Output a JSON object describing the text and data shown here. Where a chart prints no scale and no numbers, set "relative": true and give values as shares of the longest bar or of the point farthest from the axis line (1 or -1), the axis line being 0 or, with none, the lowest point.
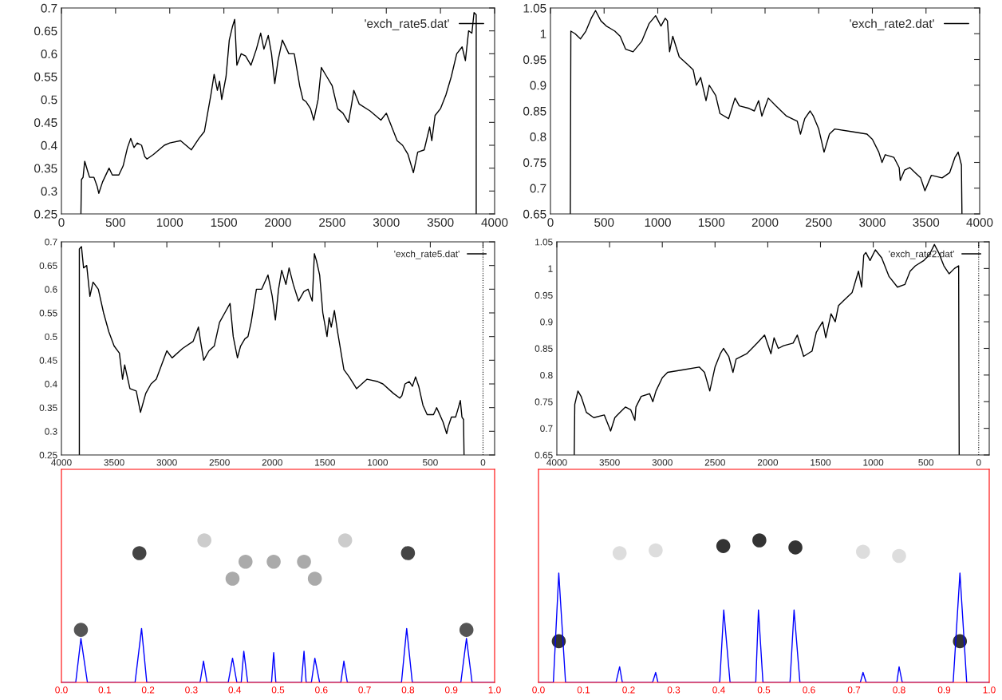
{
  "chart_data": [
    {
      "type": "line",
      "xlim": [
        0,
        4000
      ],
      "ylim": [
        0.25,
        0.7
      ],
      "xticks": [
        0,
        500,
        1000,
        1500,
        2000,
        2500,
        3000,
        3500,
        4000
      ],
      "yticks": [
        0.25,
        0.3,
        0.35,
        0.4,
        0.45,
        0.5,
        0.55,
        0.6,
        0.65,
        0.7
      ],
      "legend": "top right",
      "series": [
        {
          "name": "'exch_rate5.dat'",
          "color": "#000000",
          "x": [
            180,
            185,
            200,
            215,
            240,
            260,
            300,
            330,
            345,
            380,
            420,
            440,
            470,
            530,
            570,
            610,
            640,
            670,
            700,
            740,
            770,
            790,
            850,
            950,
            1000,
            1100,
            1200,
            1270,
            1320,
            1380,
            1410,
            1440,
            1460,
            1480,
            1520,
            1550,
            1580,
            1600,
            1620,
            1660,
            1700,
            1750,
            1800,
            1840,
            1870,
            1910,
            1940,
            1970,
            2000,
            2040,
            2100,
            2150,
            2200,
            2230,
            2260,
            2300,
            2330,
            2370,
            2400,
            2450,
            2500,
            2550,
            2600,
            2650,
            2680,
            2700,
            2750,
            2850,
            2950,
            3000,
            3050,
            3100,
            3150,
            3200,
            3250,
            3290,
            3350,
            3400,
            3420,
            3450,
            3500,
            3550,
            3600,
            3650,
            3700,
            3730,
            3760,
            3790,
            3810,
            3830,
            3830
          ],
          "values": [
            0.25,
            0.325,
            0.33,
            0.365,
            0.345,
            0.33,
            0.33,
            0.31,
            0.295,
            0.32,
            0.34,
            0.35,
            0.335,
            0.335,
            0.355,
            0.395,
            0.415,
            0.395,
            0.405,
            0.4,
            0.375,
            0.37,
            0.38,
            0.4,
            0.405,
            0.41,
            0.39,
            0.415,
            0.43,
            0.51,
            0.555,
            0.52,
            0.54,
            0.5,
            0.55,
            0.63,
            0.66,
            0.675,
            0.575,
            0.6,
            0.595,
            0.575,
            0.61,
            0.645,
            0.61,
            0.64,
            0.6,
            0.535,
            0.585,
            0.63,
            0.6,
            0.6,
            0.53,
            0.5,
            0.495,
            0.48,
            0.455,
            0.5,
            0.57,
            0.55,
            0.53,
            0.48,
            0.47,
            0.45,
            0.49,
            0.52,
            0.49,
            0.475,
            0.455,
            0.47,
            0.44,
            0.41,
            0.4,
            0.38,
            0.34,
            0.385,
            0.39,
            0.44,
            0.41,
            0.465,
            0.48,
            0.51,
            0.55,
            0.6,
            0.615,
            0.585,
            0.65,
            0.645,
            0.69,
            0.685,
            0.25
          ]
        }
      ]
    },
    {
      "type": "line",
      "xlim": [
        0,
        4000
      ],
      "ylim": [
        0.65,
        1.05
      ],
      "xticks": [
        0,
        500,
        1000,
        1500,
        2000,
        2500,
        3000,
        3500,
        4000
      ],
      "yticks": [
        0.65,
        0.7,
        0.75,
        0.8,
        0.85,
        0.9,
        0.95,
        1,
        1.05
      ],
      "legend": "top right",
      "series": [
        {
          "name": "'exch_rate2.dat'",
          "color": "#000000",
          "x": [
            185,
            190,
            230,
            280,
            330,
            380,
            420,
            470,
            520,
            600,
            650,
            700,
            770,
            850,
            920,
            980,
            1030,
            1070,
            1090,
            1110,
            1140,
            1200,
            1280,
            1330,
            1360,
            1400,
            1450,
            1480,
            1540,
            1580,
            1660,
            1720,
            1760,
            1850,
            1900,
            1940,
            1970,
            2030,
            2100,
            2200,
            2300,
            2330,
            2370,
            2420,
            2450,
            2500,
            2550,
            2600,
            2650,
            2800,
            2950,
            3000,
            3060,
            3090,
            3120,
            3200,
            3250,
            3260,
            3300,
            3350,
            3400,
            3450,
            3490,
            3550,
            3650,
            3720,
            3770,
            3800,
            3830,
            3835
          ],
          "values": [
            0.65,
            1.005,
            1.0,
            0.99,
            1.005,
            1.03,
            1.045,
            1.025,
            1.015,
            1.005,
            0.995,
            0.97,
            0.965,
            0.985,
            1.02,
            1.035,
            1.015,
            1.03,
            1.025,
            0.965,
            0.995,
            0.955,
            0.94,
            0.93,
            0.9,
            0.915,
            0.87,
            0.9,
            0.88,
            0.845,
            0.835,
            0.875,
            0.86,
            0.855,
            0.85,
            0.87,
            0.84,
            0.875,
            0.86,
            0.84,
            0.83,
            0.805,
            0.835,
            0.85,
            0.84,
            0.815,
            0.77,
            0.805,
            0.815,
            0.81,
            0.805,
            0.795,
            0.77,
            0.75,
            0.765,
            0.76,
            0.74,
            0.715,
            0.735,
            0.74,
            0.73,
            0.72,
            0.695,
            0.725,
            0.72,
            0.73,
            0.76,
            0.77,
            0.745,
            0.65
          ]
        }
      ]
    },
    {
      "type": "line",
      "xlim": [
        4000,
        -110
      ],
      "ylim": [
        0.25,
        0.7
      ],
      "xticks": [
        4000,
        3500,
        3000,
        2500,
        2000,
        1500,
        1000,
        500,
        0
      ],
      "yticks": [
        0.25,
        0.3,
        0.35,
        0.4,
        0.45,
        0.5,
        0.55,
        0.6,
        0.65,
        0.7
      ],
      "legend": "top right",
      "ref_lines": [
        {
          "axis": "x",
          "value": 0,
          "color": "#000000",
          "line_style": "dotted"
        }
      ],
      "series": [
        {
          "name": "'exch_rate5.dat'",
          "color": "#000000",
          "x": [
            180,
            185,
            200,
            215,
            240,
            260,
            300,
            330,
            345,
            380,
            420,
            440,
            470,
            530,
            570,
            610,
            640,
            670,
            700,
            740,
            770,
            790,
            850,
            950,
            1000,
            1100,
            1200,
            1270,
            1320,
            1380,
            1410,
            1440,
            1460,
            1480,
            1520,
            1550,
            1580,
            1600,
            1620,
            1660,
            1700,
            1750,
            1800,
            1840,
            1870,
            1910,
            1940,
            1970,
            2000,
            2040,
            2100,
            2150,
            2200,
            2230,
            2260,
            2300,
            2330,
            2370,
            2400,
            2450,
            2500,
            2550,
            2600,
            2650,
            2680,
            2700,
            2750,
            2850,
            2950,
            3000,
            3050,
            3100,
            3150,
            3200,
            3250,
            3290,
            3350,
            3400,
            3420,
            3450,
            3500,
            3550,
            3600,
            3650,
            3700,
            3730,
            3760,
            3790,
            3810,
            3830,
            3830
          ],
          "values": [
            0.25,
            0.325,
            0.33,
            0.365,
            0.345,
            0.33,
            0.33,
            0.31,
            0.295,
            0.32,
            0.34,
            0.35,
            0.335,
            0.335,
            0.355,
            0.395,
            0.415,
            0.395,
            0.405,
            0.4,
            0.375,
            0.37,
            0.38,
            0.4,
            0.405,
            0.41,
            0.39,
            0.415,
            0.43,
            0.51,
            0.555,
            0.52,
            0.54,
            0.5,
            0.55,
            0.63,
            0.66,
            0.675,
            0.575,
            0.6,
            0.595,
            0.575,
            0.61,
            0.645,
            0.61,
            0.64,
            0.6,
            0.535,
            0.585,
            0.63,
            0.6,
            0.6,
            0.53,
            0.5,
            0.495,
            0.48,
            0.455,
            0.5,
            0.57,
            0.55,
            0.53,
            0.48,
            0.47,
            0.45,
            0.49,
            0.52,
            0.49,
            0.475,
            0.455,
            0.47,
            0.44,
            0.41,
            0.4,
            0.38,
            0.34,
            0.385,
            0.39,
            0.44,
            0.41,
            0.465,
            0.48,
            0.51,
            0.55,
            0.6,
            0.615,
            0.585,
            0.65,
            0.645,
            0.69,
            0.685,
            0.25
          ]
        }
      ]
    },
    {
      "type": "line",
      "xlim": [
        4000,
        -100
      ],
      "ylim": [
        0.65,
        1.05
      ],
      "xticks": [
        4000,
        3500,
        3000,
        2500,
        2000,
        1500,
        1000,
        500,
        0
      ],
      "yticks": [
        0.65,
        0.7,
        0.75,
        0.8,
        0.85,
        0.9,
        0.95,
        1,
        1.05
      ],
      "legend": "top right",
      "ref_lines": [
        {
          "axis": "x",
          "value": 0,
          "color": "#000000",
          "line_style": "dotted"
        }
      ],
      "series": [
        {
          "name": "'exch_rate2.dat'",
          "color": "#000000",
          "x": [
            185,
            190,
            230,
            280,
            330,
            380,
            420,
            470,
            520,
            600,
            650,
            700,
            770,
            850,
            920,
            980,
            1030,
            1070,
            1090,
            1110,
            1140,
            1200,
            1280,
            1330,
            1360,
            1400,
            1450,
            1480,
            1540,
            1580,
            1660,
            1720,
            1760,
            1850,
            1900,
            1940,
            1970,
            2030,
            2100,
            2200,
            2300,
            2330,
            2370,
            2420,
            2450,
            2500,
            2550,
            2600,
            2650,
            2800,
            2950,
            3000,
            3060,
            3090,
            3120,
            3200,
            3250,
            3260,
            3300,
            3350,
            3400,
            3450,
            3490,
            3550,
            3650,
            3720,
            3770,
            3800,
            3830,
            3835
          ],
          "values": [
            0.65,
            1.005,
            1.0,
            0.99,
            1.005,
            1.03,
            1.045,
            1.025,
            1.015,
            1.005,
            0.995,
            0.97,
            0.965,
            0.985,
            1.02,
            1.035,
            1.015,
            1.03,
            1.025,
            0.965,
            0.995,
            0.955,
            0.94,
            0.93,
            0.9,
            0.915,
            0.87,
            0.9,
            0.88,
            0.845,
            0.835,
            0.875,
            0.86,
            0.855,
            0.85,
            0.87,
            0.84,
            0.875,
            0.86,
            0.84,
            0.83,
            0.805,
            0.835,
            0.85,
            0.84,
            0.815,
            0.77,
            0.805,
            0.815,
            0.81,
            0.805,
            0.795,
            0.77,
            0.75,
            0.765,
            0.76,
            0.74,
            0.715,
            0.735,
            0.74,
            0.73,
            0.72,
            0.695,
            0.725,
            0.72,
            0.73,
            0.76,
            0.77,
            0.745,
            0.65
          ]
        }
      ]
    },
    {
      "type": "line",
      "relative": true,
      "tick_labels": "x",
      "xlim": [
        0,
        1
      ],
      "xticks": [
        {
          "value": 0,
          "label": "0.0"
        },
        {
          "value": 0.1,
          "label": "0.1"
        },
        {
          "value": 0.2,
          "label": "0.2"
        },
        {
          "value": 0.3,
          "label": "0.3"
        },
        {
          "value": 0.4,
          "label": "0.4"
        },
        {
          "value": 0.5,
          "label": "0.5"
        },
        {
          "value": 0.6,
          "label": "0.6"
        },
        {
          "value": 0.7,
          "label": "0.7"
        },
        {
          "value": 0.8,
          "label": "0.8"
        },
        {
          "value": 0.9,
          "label": "0.9"
        },
        {
          "value": 1,
          "label": "1.0"
        }
      ],
      "series": [
        {
          "type": "scatter",
          "marker": "circle",
          "x": [
            0.045,
            0.18,
            0.33,
            0.395,
            0.425,
            0.49,
            0.56,
            0.585,
            0.655,
            0.8,
            0.935
          ],
          "values": [
            0.37,
            0.91,
            1.0,
            0.73,
            0.85,
            0.85,
            0.85,
            0.73,
            1.0,
            0.91,
            0.37
          ],
          "colors": [
            "#555555",
            "#444444",
            "#cccccc",
            "#aaaaaa",
            "#aaaaaa",
            "#aaaaaa",
            "#aaaaaa",
            "#aaaaaa",
            "#cccccc",
            "#444444",
            "#555555"
          ]
        },
        {
          "type": "line",
          "color": "#0000ff",
          "x": [
            0,
            0.033,
            0.045,
            0.06,
            0.17,
            0.185,
            0.197,
            0.32,
            0.328,
            0.336,
            0.385,
            0.395,
            0.405,
            0.415,
            0.421,
            0.43,
            0.485,
            0.49,
            0.495,
            0.554,
            0.56,
            0.565,
            0.577,
            0.585,
            0.596,
            0.645,
            0.652,
            0.66,
            0.785,
            0.797,
            0.81,
            0.922,
            0.935,
            0.948,
            1.0
          ],
          "values": [
            0,
            0,
            0.31,
            0,
            0,
            0.38,
            0,
            0,
            0.15,
            0,
            0,
            0.17,
            0,
            0,
            0.22,
            0,
            0,
            0.21,
            0,
            0,
            0.22,
            0,
            0,
            0.17,
            0,
            0,
            0.15,
            0,
            0,
            0.38,
            0,
            0,
            0.31,
            0,
            0
          ]
        }
      ]
    },
    {
      "type": "line",
      "relative": true,
      "tick_labels": "x",
      "xlim": [
        0,
        1
      ],
      "xticks": [
        {
          "value": 0,
          "label": "0.0"
        },
        {
          "value": 0.1,
          "label": "0.1"
        },
        {
          "value": 0.2,
          "label": "0.2"
        },
        {
          "value": 0.3,
          "label": "0.3"
        },
        {
          "value": 0.4,
          "label": "0.4"
        },
        {
          "value": 0.5,
          "label": "0.5"
        },
        {
          "value": 0.6,
          "label": "0.6"
        },
        {
          "value": 0.7,
          "label": "0.7"
        },
        {
          "value": 0.8,
          "label": "0.8"
        },
        {
          "value": 0.9,
          "label": "0.9"
        },
        {
          "value": 1,
          "label": "1.0"
        }
      ],
      "series": [
        {
          "type": "scatter",
          "marker": "circle",
          "x": [
            0.045,
            0.18,
            0.26,
            0.41,
            0.49,
            0.57,
            0.72,
            0.8,
            0.935
          ],
          "values": [
            0.29,
            0.91,
            0.93,
            0.96,
            1.0,
            0.95,
            0.92,
            0.89,
            0.29
          ],
          "colors": [
            "#333333",
            "#dddddd",
            "#dddddd",
            "#333333",
            "#333333",
            "#333333",
            "#dddddd",
            "#dddddd",
            "#333333"
          ]
        },
        {
          "type": "line",
          "color": "#0000ff",
          "x": [
            0,
            0.033,
            0.045,
            0.06,
            0.172,
            0.18,
            0.186,
            0.253,
            0.26,
            0.265,
            0.402,
            0.411,
            0.425,
            0.482,
            0.488,
            0.498,
            0.558,
            0.567,
            0.58,
            0.714,
            0.72,
            0.727,
            0.795,
            0.8,
            0.807,
            0.92,
            0.935,
            0.95,
            1.0
          ],
          "values": [
            0,
            0,
            0.77,
            0,
            0,
            0.11,
            0,
            0,
            0.07,
            0,
            0,
            0.51,
            0,
            0,
            0.51,
            0,
            0,
            0.51,
            0,
            0,
            0.07,
            0,
            0,
            0.11,
            0,
            0,
            0.77,
            0,
            0
          ]
        }
      ]
    }
  ]
}
